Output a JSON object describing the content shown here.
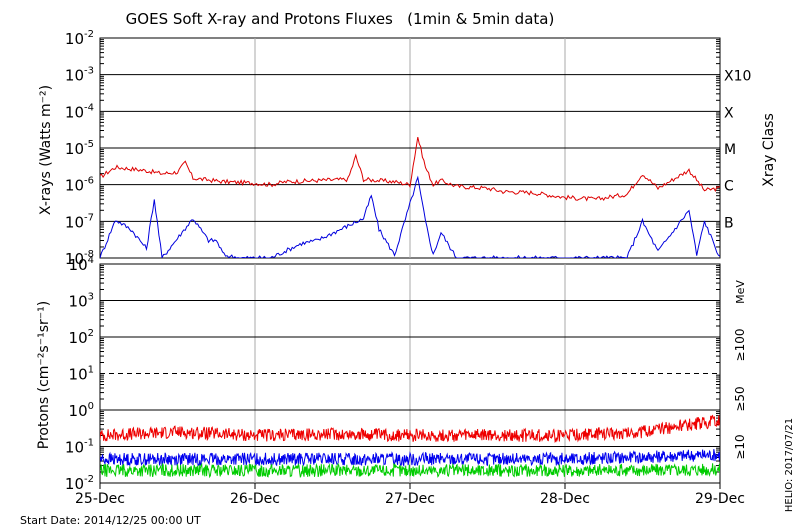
{
  "chart_data": [
    {
      "type": "line",
      "title": "GOES Soft X-ray and Protons Fluxes   (1min & 5min data)",
      "ylabel": "X-rays (Watts m⁻²)",
      "y2label": "Xray Class",
      "yscale": "log",
      "ylim": [
        1e-08,
        0.01
      ],
      "y_ticks": [
        {
          "v": 1e-08,
          "exp": "-8"
        },
        {
          "v": 1e-07,
          "exp": "-7"
        },
        {
          "v": 1e-06,
          "exp": "-6"
        },
        {
          "v": 1e-05,
          "exp": "-5"
        },
        {
          "v": 0.0001,
          "exp": "-4"
        },
        {
          "v": 0.001,
          "exp": "-3"
        },
        {
          "v": 0.01,
          "exp": "-2"
        }
      ],
      "xray_classes": [
        {
          "label": "B",
          "v": 1e-07
        },
        {
          "label": "C",
          "v": 1e-06
        },
        {
          "label": "M",
          "v": 1e-05
        },
        {
          "label": "X",
          "v": 0.0001
        },
        {
          "label": "X10",
          "v": 0.001
        }
      ],
      "x_day_ticks": [
        "25-Dec",
        "26-Dec",
        "27-Dec",
        "28-Dec",
        "29-Dec"
      ],
      "x_days": [
        0,
        4
      ],
      "series": [
        {
          "color": "#dd0000",
          "x": [
            0.0,
            0.1,
            0.2,
            0.3,
            0.4,
            0.5,
            0.55,
            0.6,
            0.8,
            1.0,
            1.1,
            1.2,
            1.4,
            1.6,
            1.65,
            1.7,
            1.9,
            2.0,
            2.05,
            2.1,
            2.15,
            2.2,
            2.3,
            2.5,
            2.6,
            2.8,
            3.0,
            3.2,
            3.4,
            3.5,
            3.6,
            3.8,
            3.9,
            4.0
          ],
          "y": [
            1.6e-06,
            3e-06,
            2.7e-06,
            2.4e-06,
            2e-06,
            2.2e-06,
            4e-06,
            1.5e-06,
            1.2e-06,
            1.1e-06,
            1e-06,
            1.2e-06,
            1.3e-06,
            1.4e-06,
            6e-06,
            1.4e-06,
            1.2e-06,
            1e-06,
            2e-05,
            3e-06,
            1e-06,
            1.3e-06,
            9e-07,
            8e-07,
            6.5e-07,
            6e-07,
            4.5e-07,
            4e-07,
            5.5e-07,
            2e-06,
            8e-07,
            2.5e-06,
            7e-07,
            8e-07
          ]
        },
        {
          "color": "#0000dd",
          "x": [
            0.0,
            0.1,
            0.2,
            0.3,
            0.35,
            0.4,
            0.6,
            0.7,
            0.75,
            0.8,
            0.9,
            1.0,
            1.1,
            1.3,
            1.4,
            1.7,
            1.75,
            1.8,
            1.9,
            2.05,
            2.1,
            2.15,
            2.2,
            2.3,
            2.5,
            2.8,
            3.0,
            3.4,
            3.5,
            3.6,
            3.8,
            3.85,
            3.9,
            4.0
          ],
          "y": [
            1e-08,
            1.1e-07,
            6e-08,
            1.8e-08,
            4e-07,
            1e-08,
            1.2e-07,
            3e-08,
            3e-08,
            1.2e-08,
            1e-08,
            1e-08,
            1e-08,
            2.5e-08,
            3e-08,
            1.2e-07,
            5e-07,
            6e-08,
            1.2e-08,
            1.5e-06,
            1e-07,
            1.2e-08,
            5e-08,
            1e-08,
            1e-08,
            1e-08,
            1e-08,
            1e-08,
            1e-07,
            1.5e-08,
            2e-07,
            1.2e-08,
            1e-07,
            1e-08
          ]
        }
      ]
    },
    {
      "type": "line",
      "ylabel": "Protons (cm⁻²s⁻¹sr⁻¹)",
      "y2label": "MeV",
      "yscale": "log",
      "ylim": [
        0.01,
        10000
      ],
      "y_ticks": [
        {
          "v": 0.01,
          "base": "10",
          "exp": "-2"
        },
        {
          "v": 0.1,
          "base": "10",
          "exp": "-1"
        },
        {
          "v": 1,
          "base": "10",
          "exp": "0"
        },
        {
          "v": 10,
          "base": "10",
          "exp": "1"
        },
        {
          "v": 100,
          "base": "10",
          "exp": "2"
        },
        {
          "v": 1000,
          "base": "10",
          "exp": "3"
        },
        {
          "v": 10000,
          "base": "10",
          "exp": "4"
        }
      ],
      "threshold_line": 10,
      "x_day_ticks": [
        "25-Dec",
        "26-Dec",
        "27-Dec",
        "28-Dec",
        "29-Dec"
      ],
      "x_days": [
        0,
        4
      ],
      "series": [
        {
          "name": "≥10",
          "color": "#ee0000",
          "x": [
            0.0,
            0.5,
            1.0,
            1.5,
            2.0,
            2.5,
            3.0,
            3.5,
            3.8,
            4.0
          ],
          "y": [
            0.2,
            0.25,
            0.2,
            0.22,
            0.2,
            0.2,
            0.2,
            0.25,
            0.4,
            0.5
          ]
        },
        {
          "name": "≥50",
          "color": "#0000ee",
          "x": [
            0.0,
            1.0,
            2.0,
            3.0,
            4.0
          ],
          "y": [
            0.045,
            0.045,
            0.045,
            0.045,
            0.06
          ]
        },
        {
          "name": "≥100",
          "color": "#00cc00",
          "x": [
            0.0,
            1.0,
            2.0,
            3.0,
            4.0
          ],
          "y": [
            0.022,
            0.022,
            0.022,
            0.022,
            0.024
          ]
        }
      ]
    }
  ],
  "footer": {
    "start_date": "Start Date: 2014/12/25 00:00 UT",
    "credit": "HELIO: 2017/07/21"
  }
}
